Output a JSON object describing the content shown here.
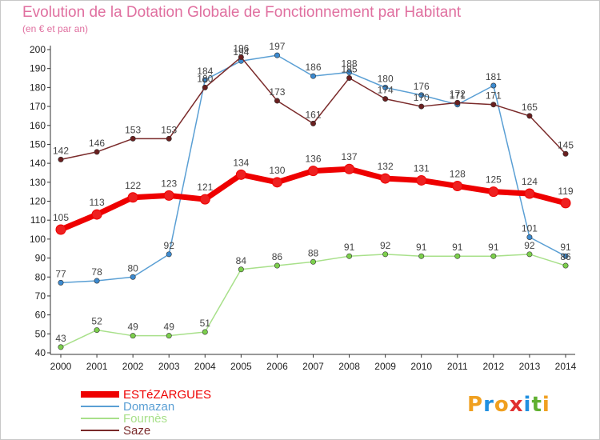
{
  "title": "Evolution de la Dotation Globale de Fonctionnement par Habitant",
  "subtitle": "(en € et par an)",
  "logo": {
    "letters": [
      {
        "ch": "P",
        "color": "#f0a020"
      },
      {
        "ch": "r",
        "color": "#2090e0"
      },
      {
        "ch": "o",
        "color": "#f0a020"
      },
      {
        "ch": "x",
        "color": "#e03030"
      },
      {
        "ch": "i",
        "color": "#2090e0"
      },
      {
        "ch": "t",
        "color": "#60b030"
      },
      {
        "ch": "i",
        "color": "#f0a020"
      }
    ]
  },
  "chart_data": {
    "type": "line",
    "title": "Evolution de la Dotation Globale de Fonctionnement par Habitant",
    "subtitle": "(en € et par an)",
    "xlabel": "",
    "ylabel": "",
    "categories": [
      "2000",
      "2001",
      "2002",
      "2003",
      "2004",
      "2005",
      "2006",
      "2007",
      "2008",
      "2009",
      "2010",
      "2011",
      "2012",
      "2013",
      "2014"
    ],
    "ylim": [
      40,
      200
    ],
    "yticks": [
      40,
      50,
      60,
      70,
      80,
      90,
      100,
      110,
      120,
      130,
      140,
      150,
      160,
      170,
      180,
      190,
      200
    ],
    "grid": false,
    "legend_position": "bottom-left",
    "series": [
      {
        "name": "ESTéZARGUES",
        "color": "#ee0000",
        "marker_fill": "#ee2020",
        "emphasis": "thick",
        "values": [
          105,
          113,
          122,
          123,
          121,
          134,
          130,
          136,
          137,
          132,
          131,
          128,
          125,
          124,
          119
        ]
      },
      {
        "name": "Domazan",
        "color": "#5a9fd4",
        "marker_fill": "#3c8ad0",
        "emphasis": "normal",
        "values": [
          77,
          78,
          80,
          92,
          184,
          194,
          197,
          186,
          188,
          180,
          176,
          171,
          181,
          101,
          91
        ]
      },
      {
        "name": "Fournès",
        "color": "#a8e08a",
        "marker_fill": "#7ccf4c",
        "emphasis": "normal",
        "values": [
          43,
          52,
          49,
          49,
          51,
          84,
          86,
          88,
          91,
          92,
          91,
          91,
          91,
          92,
          86
        ]
      },
      {
        "name": "Saze",
        "color": "#7a2a2a",
        "marker_fill": "#6a1f1f",
        "emphasis": "normal",
        "values": [
          142,
          146,
          153,
          153,
          180,
          196,
          173,
          161,
          185,
          174,
          170,
          172,
          171,
          165,
          145
        ]
      }
    ]
  }
}
